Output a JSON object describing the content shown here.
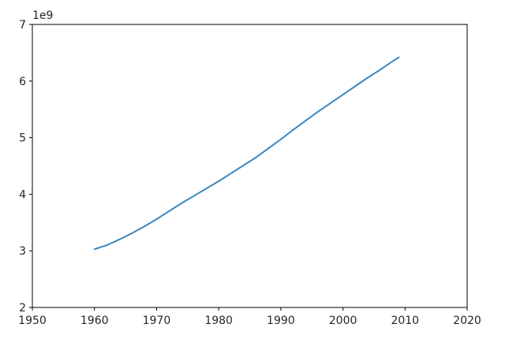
{
  "chart_data": {
    "type": "line",
    "title": "",
    "xlabel": "",
    "ylabel": "",
    "x_ticks": [
      1950,
      1960,
      1970,
      1980,
      1990,
      2000,
      2010,
      2020
    ],
    "y_ticks": [
      2,
      3,
      4,
      5,
      6,
      7
    ],
    "x_tick_labels": [
      "1950",
      "1960",
      "1970",
      "1980",
      "1990",
      "2000",
      "2010",
      "2020"
    ],
    "y_tick_labels": [
      "2",
      "3",
      "4",
      "5",
      "6",
      "7"
    ],
    "y_exponent_label": "1e9",
    "xlim": [
      1950,
      2020
    ],
    "ylim": [
      2,
      7
    ],
    "grid": false,
    "series": [
      {
        "color": "#3a87c0",
        "x": [
          1960,
          1962,
          1964,
          1966,
          1968,
          1970,
          1972,
          1974,
          1976,
          1978,
          1980,
          1982,
          1984,
          1986,
          1988,
          1990,
          1992,
          1994,
          1996,
          1998,
          2000,
          2002,
          2004,
          2006,
          2008,
          2009
        ],
        "y": [
          3.03,
          3.1,
          3.2,
          3.31,
          3.43,
          3.56,
          3.7,
          3.84,
          3.97,
          4.1,
          4.23,
          4.37,
          4.51,
          4.65,
          4.81,
          4.97,
          5.14,
          5.3,
          5.46,
          5.61,
          5.76,
          5.91,
          6.06,
          6.2,
          6.35,
          6.42
        ]
      }
    ]
  }
}
